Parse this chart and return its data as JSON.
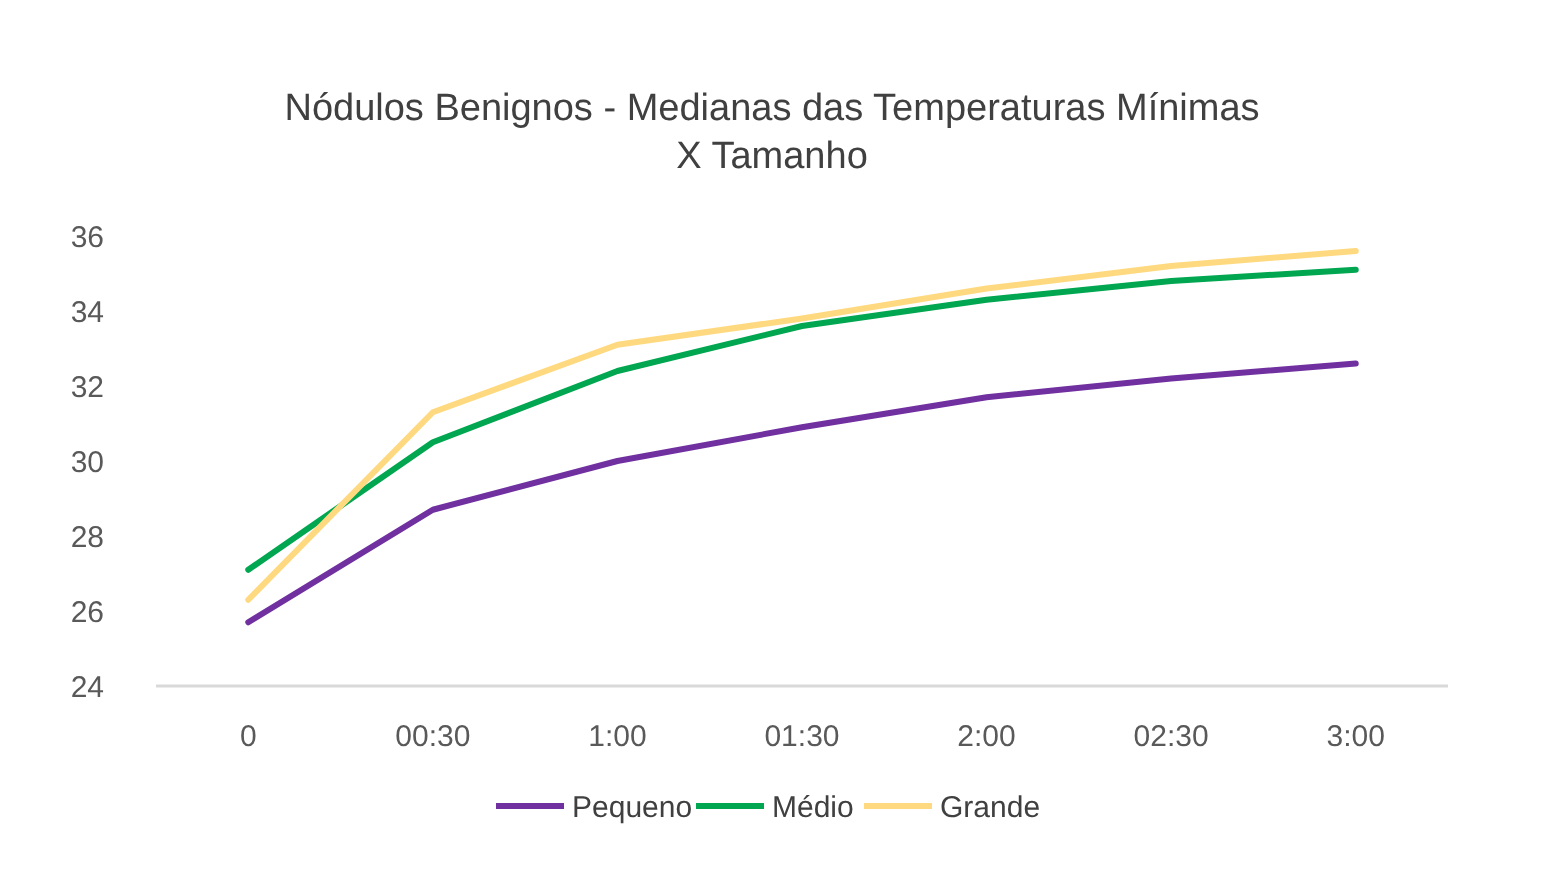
{
  "chart_data": {
    "type": "line",
    "title": "Nódulos Benignos - Medianas das Temperaturas Mínimas X Tamanho",
    "categories": [
      "0",
      "00:30",
      "1:00",
      "01:30",
      "2:00",
      "02:30",
      "3:00"
    ],
    "series": [
      {
        "name": "Pequeno",
        "color": "#7030a0",
        "values": [
          25.7,
          28.7,
          30.0,
          30.9,
          31.7,
          32.2,
          32.6
        ]
      },
      {
        "name": "Médio",
        "color": "#00a650",
        "values": [
          27.1,
          30.5,
          32.4,
          33.6,
          34.3,
          34.8,
          35.1
        ]
      },
      {
        "name": "Grande",
        "color": "#ffd97f",
        "values": [
          26.3,
          31.3,
          33.1,
          33.8,
          34.6,
          35.2,
          35.6
        ]
      }
    ],
    "ylim": [
      24,
      36
    ],
    "yticks": [
      24,
      26,
      28,
      30,
      32,
      34,
      36
    ],
    "grid": false,
    "legend": "bottom",
    "marker": "none",
    "line_style": "solid"
  }
}
